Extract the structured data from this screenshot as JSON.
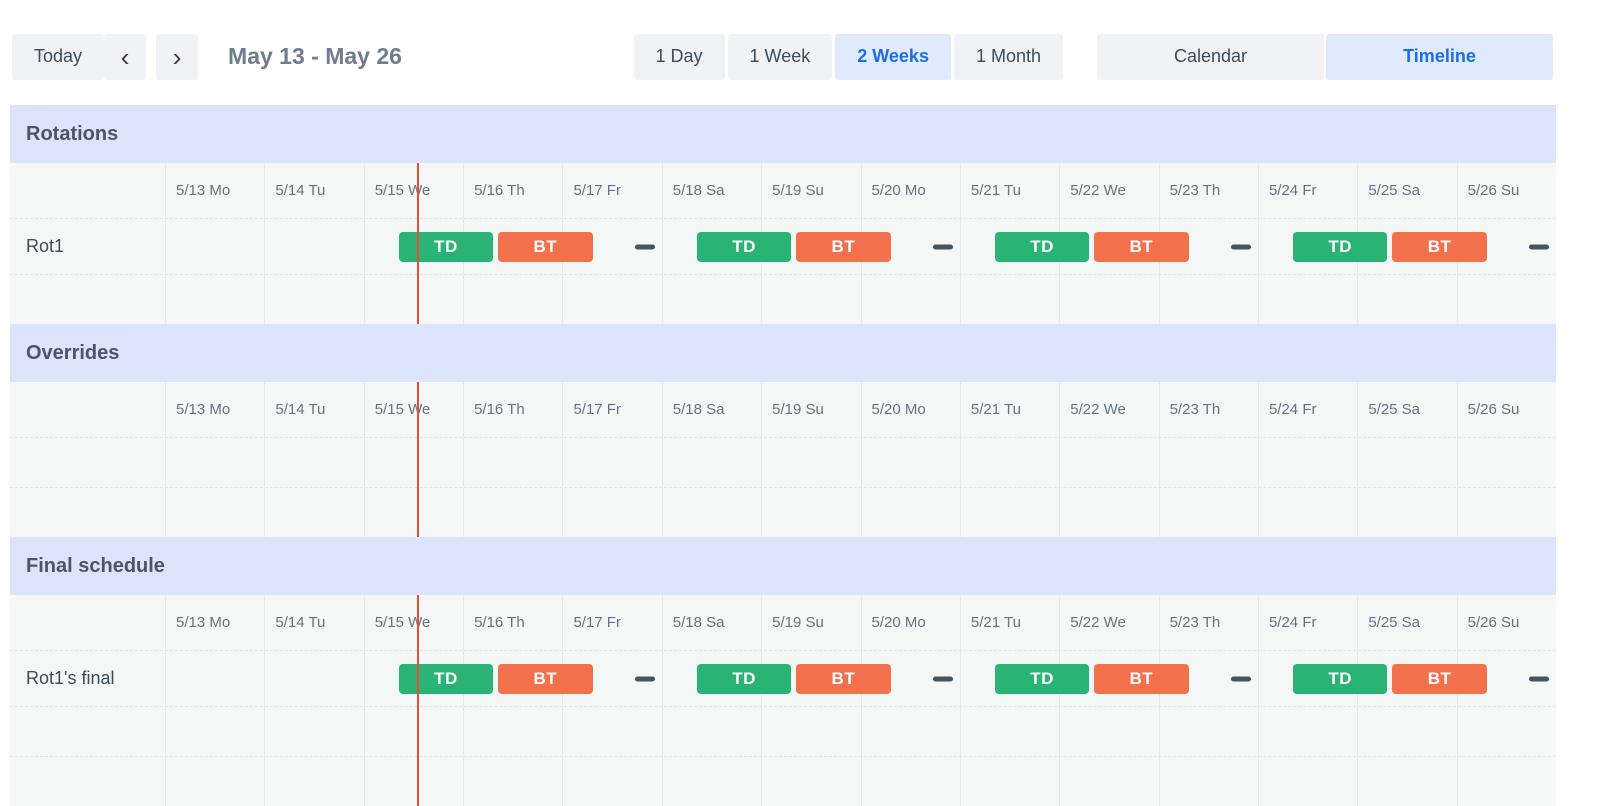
{
  "toolbar": {
    "today_label": "Today",
    "prev_icon": "‹",
    "next_icon": "›",
    "range_label": "May 13 - May 26",
    "view_options": [
      {
        "label": "1 Day",
        "active": false
      },
      {
        "label": "1 Week",
        "active": false
      },
      {
        "label": "2 Weeks",
        "active": true
      },
      {
        "label": "1 Month",
        "active": false
      }
    ],
    "mode_options": [
      {
        "label": "Calendar",
        "active": false
      },
      {
        "label": "Timeline",
        "active": true
      }
    ]
  },
  "days": [
    "5/13 Mo",
    "5/14 Tu",
    "5/15 We",
    "5/16 Th",
    "5/17 Fr",
    "5/18 Sa",
    "5/19 Su",
    "5/20 Mo",
    "5/21 Tu",
    "5/22 We",
    "5/23 Th",
    "5/24 Fr",
    "5/25 Sa",
    "5/26 Su"
  ],
  "days_total": 14,
  "block_types": {
    "TD": {
      "label": "TD",
      "color": "#2ab374"
    },
    "BT": {
      "label": "BT",
      "color": "#f2714b"
    }
  },
  "gap_color": "#46525e",
  "now_line": {
    "day": 2.55,
    "color": "#e2503a"
  },
  "sections": [
    {
      "id": "rotations",
      "title": "Rotations",
      "rows": [
        {
          "label": "Rot1",
          "events": [
            {
              "kind": "TD",
              "day": 2.333,
              "len": 1
            },
            {
              "kind": "BT",
              "day": 3.333,
              "len": 1
            },
            {
              "kind": "gap",
              "day": 4.833
            },
            {
              "kind": "TD",
              "day": 5.333,
              "len": 1
            },
            {
              "kind": "BT",
              "day": 6.333,
              "len": 1
            },
            {
              "kind": "gap",
              "day": 7.833
            },
            {
              "kind": "TD",
              "day": 8.333,
              "len": 1
            },
            {
              "kind": "BT",
              "day": 9.333,
              "len": 1
            },
            {
              "kind": "gap",
              "day": 10.833
            },
            {
              "kind": "TD",
              "day": 11.333,
              "len": 1
            },
            {
              "kind": "BT",
              "day": 12.333,
              "len": 1
            },
            {
              "kind": "gap",
              "day": 13.833
            }
          ]
        },
        {
          "label": "",
          "events": []
        }
      ]
    },
    {
      "id": "overrides",
      "title": "Overrides",
      "rows": [
        {
          "label": "",
          "events": []
        },
        {
          "label": "",
          "events": []
        }
      ]
    },
    {
      "id": "final-schedule",
      "title": "Final schedule",
      "rows": [
        {
          "label": "Rot1's final",
          "events": [
            {
              "kind": "TD",
              "day": 2.333,
              "len": 1
            },
            {
              "kind": "BT",
              "day": 3.333,
              "len": 1
            },
            {
              "kind": "gap",
              "day": 4.833
            },
            {
              "kind": "TD",
              "day": 5.333,
              "len": 1
            },
            {
              "kind": "BT",
              "day": 6.333,
              "len": 1
            },
            {
              "kind": "gap",
              "day": 7.833
            },
            {
              "kind": "TD",
              "day": 8.333,
              "len": 1
            },
            {
              "kind": "BT",
              "day": 9.333,
              "len": 1
            },
            {
              "kind": "gap",
              "day": 10.833
            },
            {
              "kind": "TD",
              "day": 11.333,
              "len": 1
            },
            {
              "kind": "BT",
              "day": 12.333,
              "len": 1
            },
            {
              "kind": "gap",
              "day": 13.833
            }
          ]
        },
        {
          "label": "",
          "events": []
        },
        {
          "label": "",
          "events": []
        }
      ]
    }
  ]
}
